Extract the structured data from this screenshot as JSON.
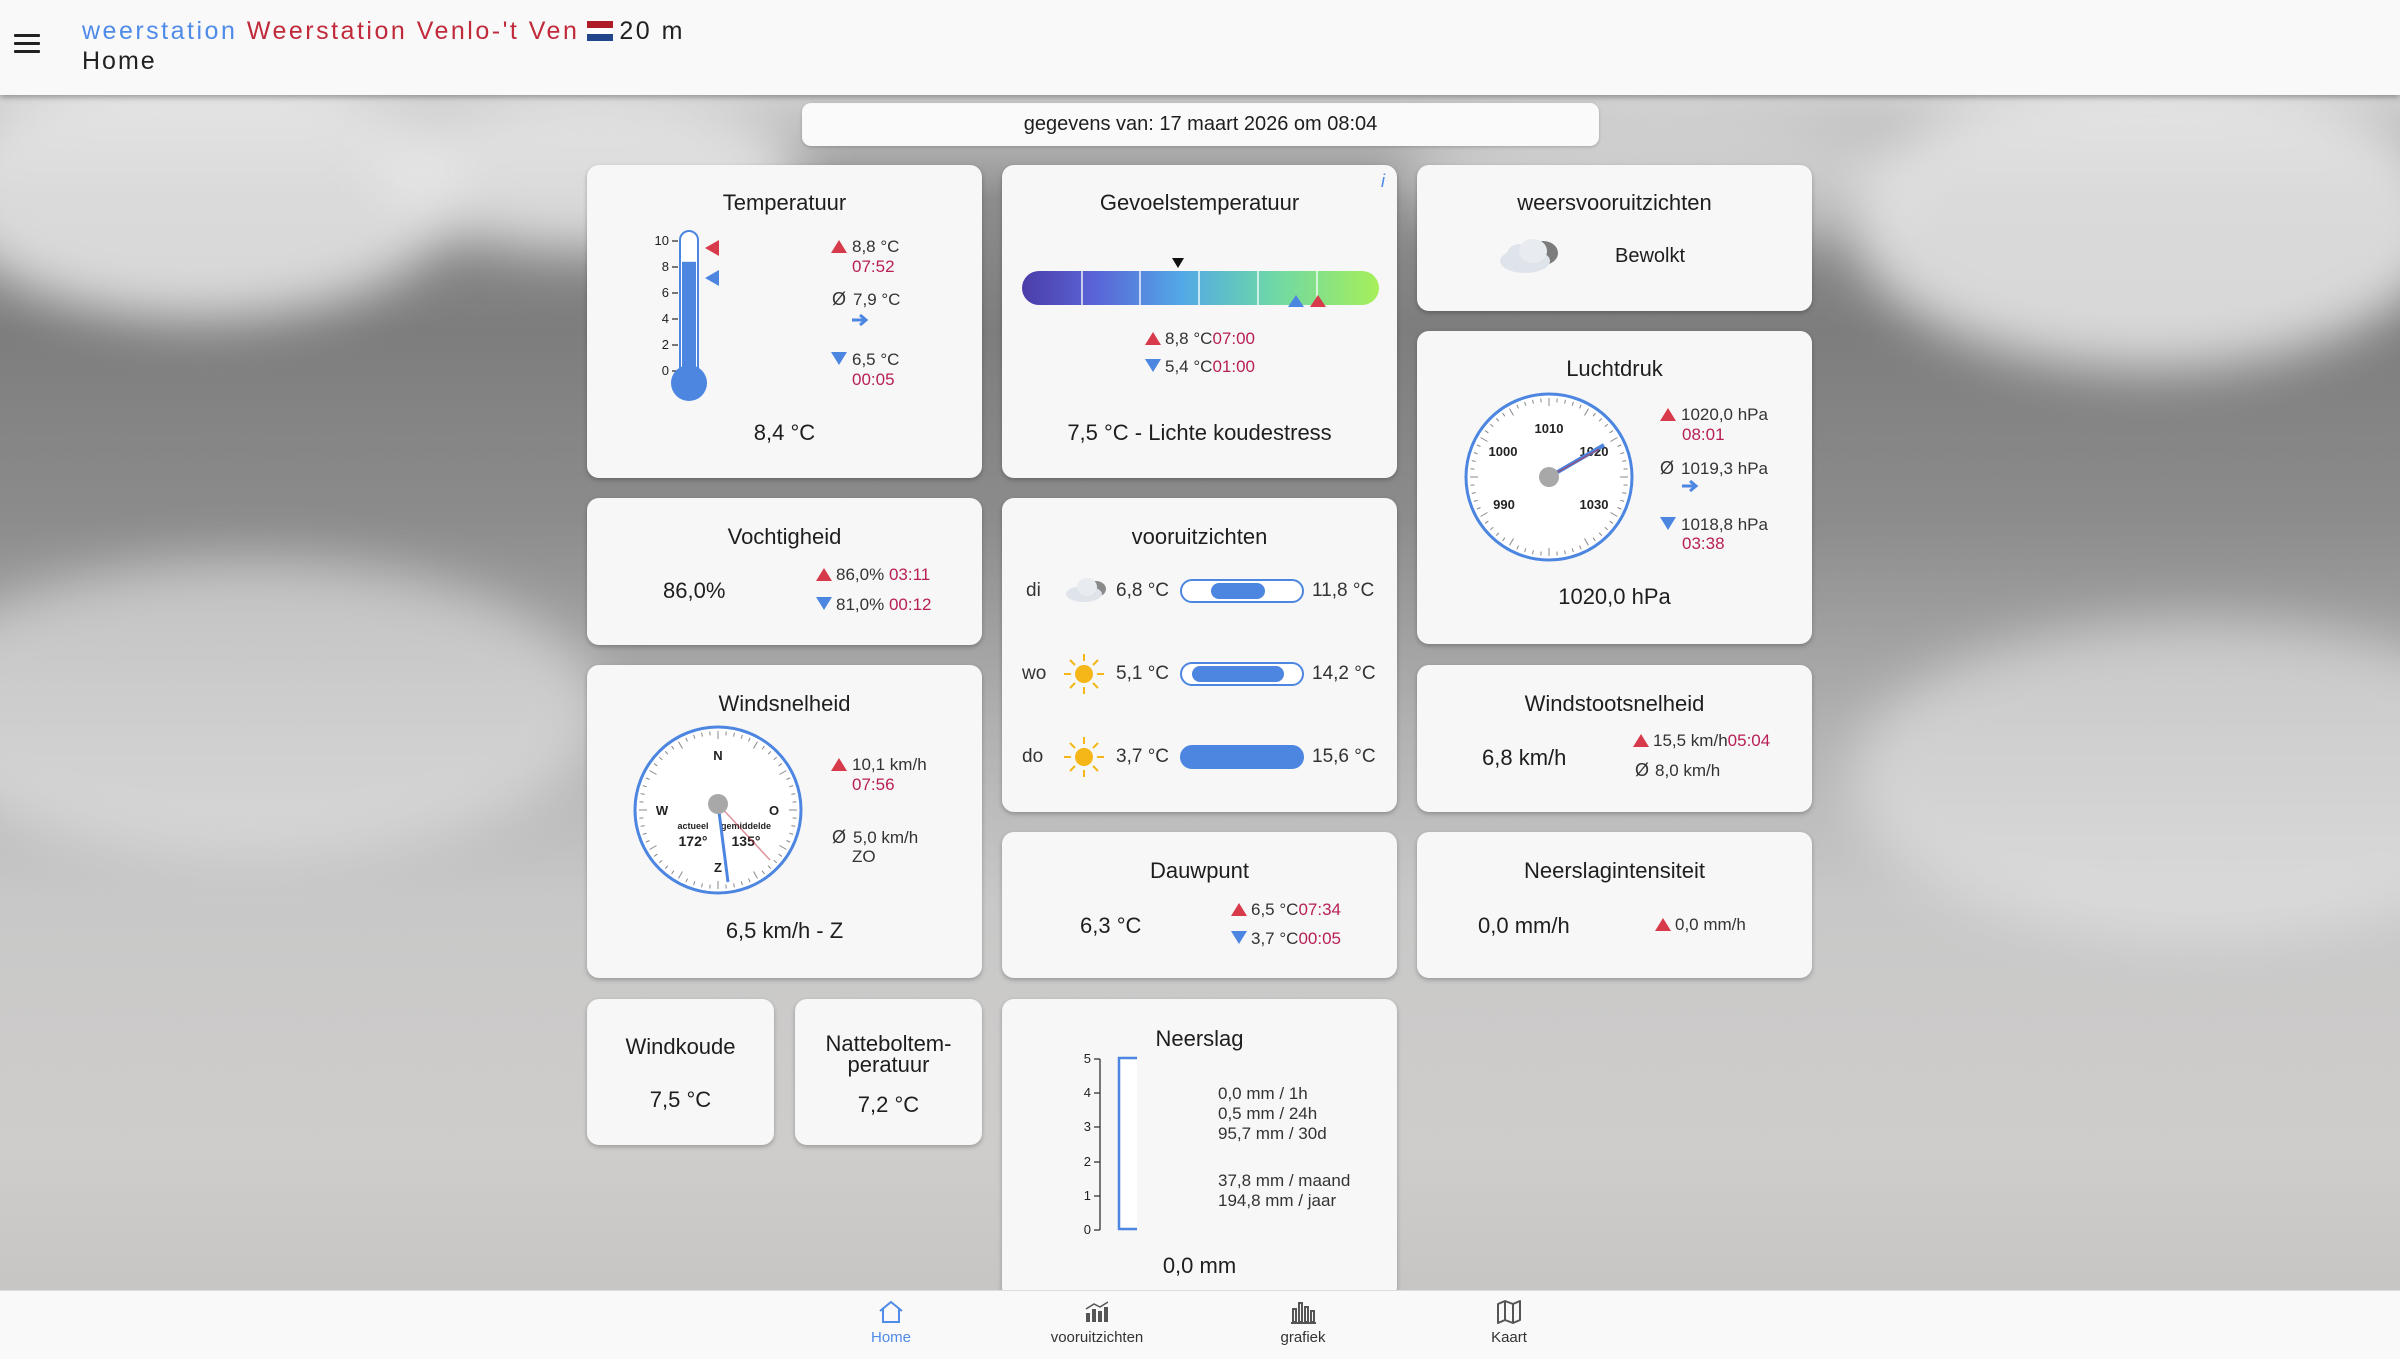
{
  "header": {
    "brand": "weerstation",
    "station_name": "Weerstation Venlo-'t Ven",
    "altitude": "20 m",
    "page_title": "Home"
  },
  "date_bar": "gegevens van: 17 maart 2026 om 08:04",
  "temperature": {
    "title": "Temperatuur",
    "current": "8,4 °C",
    "scale": [
      "10",
      "8",
      "6",
      "4",
      "2",
      "0"
    ],
    "max": "8,8 °C",
    "max_time": "07:52",
    "avg_symbol": "Ø",
    "avg": "7,9 °C",
    "min": "6,5 °C",
    "min_time": "00:05",
    "fill_value": 8.4,
    "scale_max": 10
  },
  "feels_like": {
    "title": "Gevoelstemperatuur",
    "info": "i",
    "max": "8,8 °C",
    "max_time": "07:00",
    "min": "5,4 °C",
    "min_time": "01:00",
    "summary": "7,5 °C - Lichte koudestress"
  },
  "weather_forecast": {
    "title": "weersvooruitzichten",
    "condition": "Bewolkt"
  },
  "pressure": {
    "title": "Luchtdruk",
    "current": "1020,0 hPa",
    "dial_labels": [
      "990",
      "1000",
      "1010",
      "1020",
      "1030"
    ],
    "max": "1020,0 hPa",
    "max_time": "08:01",
    "avg_symbol": "Ø",
    "avg": "1019,3 hPa",
    "min": "1018,8 hPa",
    "min_time": "03:38"
  },
  "humidity": {
    "title": "Vochtigheid",
    "current": "86,0%",
    "max": "86,0%",
    "max_time": "03:11",
    "min": "81,0%",
    "min_time": "00:12"
  },
  "forecast": {
    "title": "vooruitzichten",
    "days": [
      {
        "day": "di",
        "icon": "cloud-icon",
        "min": "6,8 °C",
        "max": "11,8 °C"
      },
      {
        "day": "wo",
        "icon": "sun-icon",
        "min": "5,1 °C",
        "max": "14,2 °C"
      },
      {
        "day": "do",
        "icon": "sun-icon",
        "min": "3,7 °C",
        "max": "15,6 °C"
      }
    ]
  },
  "wind": {
    "title": "Windsnelheid",
    "current": "6,5 km/h - Z",
    "compass": {
      "n": "N",
      "o": "O",
      "z": "Z",
      "w": "W",
      "actual_label": "actueel",
      "actual": "172°",
      "avg_label": "gemiddelde",
      "avg": "135°"
    },
    "max": "10,1 km/h",
    "max_time": "07:56",
    "avg_symbol": "Ø",
    "avg_speed": "5,0 km/h",
    "avg_dir": "ZO"
  },
  "gust": {
    "title": "Windstootsnelheid",
    "current": "6,8 km/h",
    "max": "15,5 km/h",
    "max_time": "05:04",
    "avg_symbol": "Ø",
    "avg": "8,0 km/h"
  },
  "dewpoint": {
    "title": "Dauwpunt",
    "current": "6,3 °C",
    "max": "6,5 °C",
    "max_time": "07:34",
    "min": "3,7 °C",
    "min_time": "00:05"
  },
  "rain_intensity": {
    "title": "Neerslagintensiteit",
    "current": "0,0 mm/h",
    "max": "0,0 mm/h"
  },
  "windchill": {
    "title": "Windkoude",
    "value": "7,5 °C"
  },
  "wetbulb": {
    "title_1": "Natteboltem-",
    "title_2": "peratuur",
    "value": "7,2 °C"
  },
  "rain": {
    "title": "Neerslag",
    "current": "0,0 mm",
    "scale": [
      "5",
      "4",
      "3",
      "2",
      "1",
      "0"
    ],
    "lines": [
      "0,0 mm / 1h",
      "0,5 mm / 24h",
      "95,7 mm / 30d",
      "37,8 mm  / maand",
      "194,8 mm / jaar"
    ]
  },
  "nav": {
    "home": "Home",
    "forecast": "vooruitzichten",
    "graph": "grafiek",
    "map": "Kaart"
  }
}
